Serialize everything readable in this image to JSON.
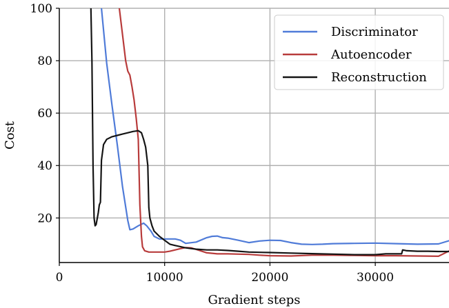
{
  "chart_data": {
    "type": "line",
    "title": "",
    "xlabel": "Gradient steps",
    "ylabel": "Cost",
    "xlim": [
      0,
      37000
    ],
    "ylim": [
      3,
      100
    ],
    "xticks": [
      0,
      10000,
      20000,
      30000
    ],
    "yticks": [
      20,
      40,
      60,
      80,
      100
    ],
    "grid": true,
    "legend_position": "top-right",
    "series": [
      {
        "name": "Discriminator",
        "color": "#4f7bd8",
        "x": [
          4000,
          4500,
          5000,
          5500,
          6000,
          6500,
          6700,
          7000,
          7500,
          8000,
          8300,
          8700,
          9000,
          9500,
          10000,
          10500,
          11000,
          11500,
          12000,
          13000,
          14000,
          14500,
          15000,
          15500,
          16000,
          17000,
          18000,
          19000,
          20000,
          21000,
          22000,
          23000,
          24000,
          25000,
          26000,
          28000,
          30000,
          32000,
          34000,
          36000,
          37000
        ],
        "y": [
          100,
          79,
          63,
          48,
          32,
          19,
          15.5,
          15.8,
          17,
          18,
          17,
          15,
          13,
          12,
          12,
          12,
          12,
          11.5,
          10.3,
          10.8,
          12.5,
          13,
          13.1,
          12.5,
          12.3,
          11.5,
          10.6,
          11.2,
          11.5,
          11.4,
          10.6,
          10,
          9.9,
          10,
          10.2,
          10.3,
          10.4,
          10.2,
          10,
          10.1,
          11.3
        ]
      },
      {
        "name": "Autoencoder",
        "color": "#b83b3b",
        "x": [
          5700,
          6000,
          6300,
          6500,
          6700,
          6900,
          7100,
          7300,
          7500,
          7650,
          7800,
          7900,
          8100,
          8500,
          9000,
          9500,
          10000,
          10500,
          11000,
          11500,
          12000,
          12500,
          13000,
          14000,
          15000,
          16000,
          17000,
          18000,
          19000,
          20000,
          22000,
          24000,
          26000,
          28000,
          30000,
          32000,
          34000,
          36000,
          37000
        ],
        "y": [
          100,
          90,
          80,
          76,
          74.5,
          70,
          65,
          58,
          50,
          25,
          13,
          9,
          7.5,
          7,
          7,
          7,
          7,
          7.3,
          7.8,
          8.3,
          8.7,
          8.6,
          8,
          6.7,
          6.3,
          6.3,
          6.2,
          6.1,
          5.8,
          5.6,
          5.5,
          5.8,
          5.8,
          5.7,
          5.6,
          5.6,
          5.5,
          5.4,
          7.4
        ]
      },
      {
        "name": "Reconstruction",
        "color": "#141414",
        "x": [
          3000,
          3100,
          3200,
          3300,
          3400,
          3500,
          3700,
          3800,
          3900,
          4000,
          4200,
          4500,
          5000,
          5500,
          6000,
          6500,
          7000,
          7500,
          7800,
          8000,
          8200,
          8400,
          8500,
          8600,
          8800,
          9000,
          9500,
          10000,
          10500,
          11000,
          12000,
          13000,
          14000,
          15000,
          16000,
          17000,
          18000,
          19000,
          20000,
          22000,
          24000,
          26000,
          28000,
          30000,
          31000,
          32000,
          32500,
          32600,
          33000,
          34000,
          35000,
          36000,
          37000
        ],
        "y": [
          100,
          80,
          40,
          20,
          17,
          17.5,
          22,
          25,
          26,
          42,
          48,
          50,
          51,
          51.5,
          52,
          52.5,
          53,
          53.3,
          52.5,
          50,
          47,
          40,
          24,
          20,
          17,
          15,
          13,
          11.5,
          10,
          9.5,
          8.6,
          8.1,
          7.8,
          7.8,
          7.6,
          7.3,
          7,
          6.9,
          6.8,
          6.6,
          6.4,
          6.2,
          6,
          6,
          6.3,
          6.3,
          6.3,
          7.8,
          7.5,
          7.3,
          7.3,
          7.2,
          7.2
        ]
      }
    ]
  }
}
